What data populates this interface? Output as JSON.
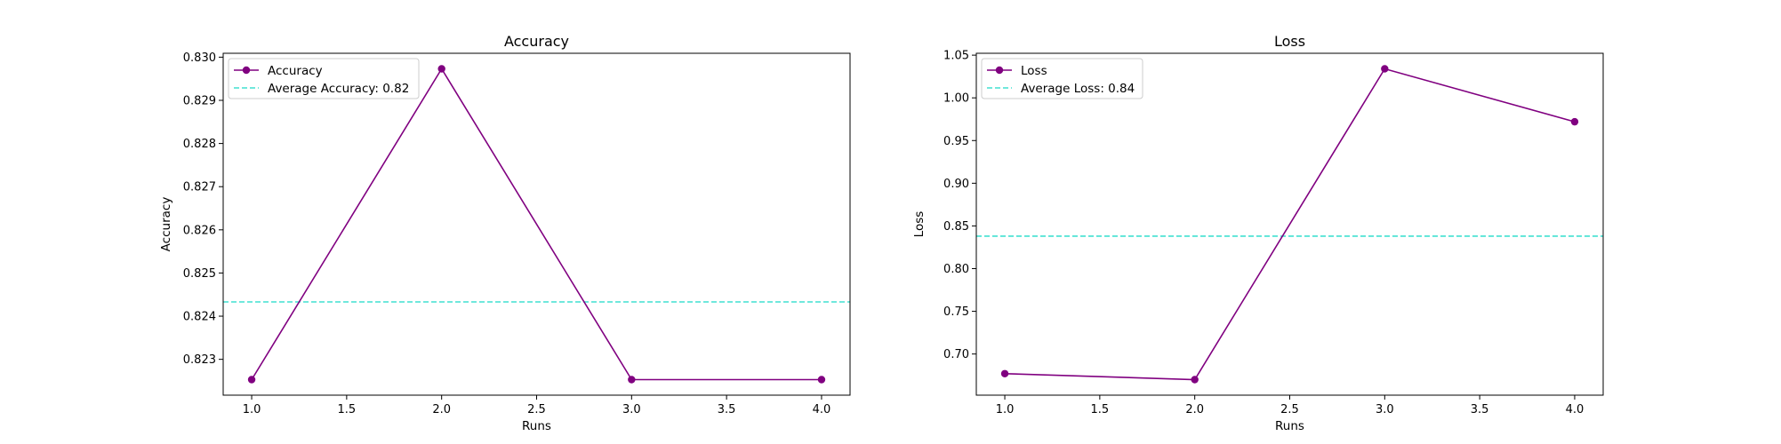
{
  "chart_data": [
    {
      "type": "line",
      "title": "Accuracy",
      "xlabel": "Runs",
      "ylabel": "Accuracy",
      "x": [
        1.0,
        2.0,
        3.0,
        4.0
      ],
      "series": [
        {
          "name": "Accuracy",
          "values": [
            0.82253,
            0.82973,
            0.82253,
            0.82253
          ],
          "color": "#800080",
          "marker": "circle"
        }
      ],
      "reference_line": {
        "name": "Average Accuracy: 0.82",
        "value": 0.82433,
        "color": "#40E0D0",
        "style": "dashed"
      },
      "xlim": [
        0.85,
        4.15
      ],
      "ylim": [
        0.82217,
        0.83009
      ],
      "xticks": [
        1.0,
        1.5,
        2.0,
        2.5,
        3.0,
        3.5,
        4.0
      ],
      "xtick_labels": [
        "1.0",
        "1.5",
        "2.0",
        "2.5",
        "3.0",
        "3.5",
        "4.0"
      ],
      "yticks": [
        0.823,
        0.824,
        0.825,
        0.826,
        0.827,
        0.828,
        0.829,
        0.83
      ],
      "ytick_labels": [
        "0.823",
        "0.824",
        "0.825",
        "0.826",
        "0.827",
        "0.828",
        "0.829",
        "0.830"
      ],
      "grid": false,
      "legend_position": "upper left"
    },
    {
      "type": "line",
      "title": "Loss",
      "xlabel": "Runs",
      "ylabel": "Loss",
      "x": [
        1.0,
        2.0,
        3.0,
        4.0
      ],
      "series": [
        {
          "name": "Loss",
          "values": [
            0.677,
            0.67,
            1.034,
            0.972
          ],
          "color": "#800080",
          "marker": "circle"
        }
      ],
      "reference_line": {
        "name": "Average Loss: 0.84",
        "value": 0.838,
        "color": "#40E0D0",
        "style": "dashed"
      },
      "xlim": [
        0.85,
        4.15
      ],
      "ylim": [
        0.6518,
        1.0522
      ],
      "xticks": [
        1.0,
        1.5,
        2.0,
        2.5,
        3.0,
        3.5,
        4.0
      ],
      "xtick_labels": [
        "1.0",
        "1.5",
        "2.0",
        "2.5",
        "3.0",
        "3.5",
        "4.0"
      ],
      "yticks": [
        0.7,
        0.75,
        0.8,
        0.85,
        0.9,
        0.95,
        1.0,
        1.05
      ],
      "ytick_labels": [
        "0.70",
        "0.75",
        "0.80",
        "0.85",
        "0.90",
        "0.95",
        "1.00",
        "1.05"
      ],
      "grid": false,
      "legend_position": "upper left"
    }
  ]
}
